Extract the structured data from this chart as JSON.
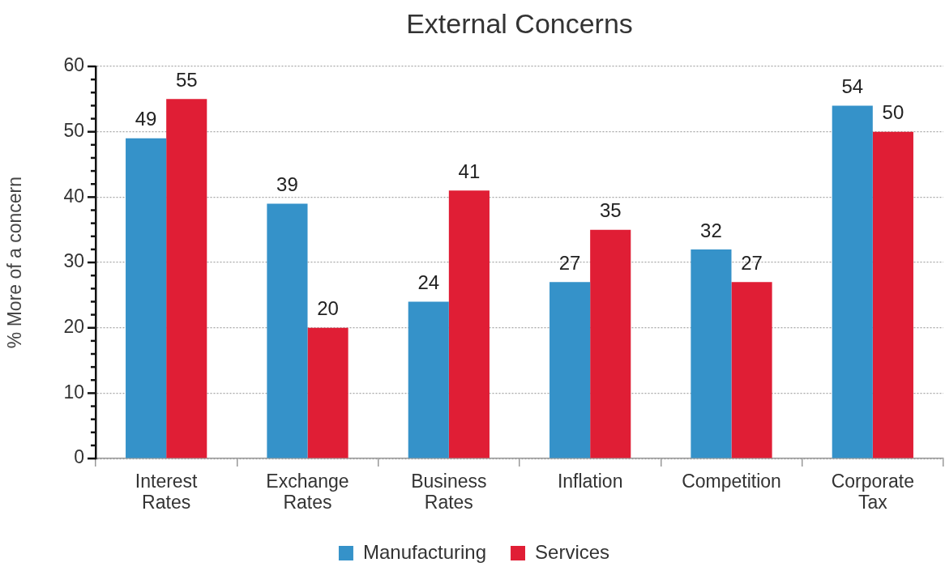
{
  "chart_data": {
    "type": "bar",
    "title": "External Concerns",
    "ylabel": "% More of a concern",
    "categories": [
      "Interest Rates",
      "Exchange Rates",
      "Business Rates",
      "Inflation",
      "Competition",
      "Corporate Tax"
    ],
    "series": [
      {
        "name": "Manufacturing",
        "color": "#3592c9",
        "values": [
          49,
          39,
          24,
          27,
          32,
          54
        ]
      },
      {
        "name": "Services",
        "color": "#e01e35",
        "values": [
          55,
          20,
          41,
          35,
          27,
          50
        ]
      }
    ],
    "ylim": [
      0,
      60
    ],
    "yticks": [
      0,
      {
        "value": 2,
        "label": null
      },
      {
        "value": 4,
        "label": null
      },
      {
        "value": 6,
        "label": null
      },
      {
        "value": 8,
        "label": null
      },
      10,
      {
        "value": 12,
        "label": null
      },
      {
        "value": 14,
        "label": null
      },
      {
        "value": 16,
        "label": null
      },
      {
        "value": 18,
        "label": null
      },
      20,
      {
        "value": 22,
        "label": null
      },
      {
        "value": 24,
        "label": null
      },
      {
        "value": 26,
        "label": null
      },
      {
        "value": 28,
        "label": null
      },
      30,
      {
        "value": 32,
        "label": null
      },
      {
        "value": 34,
        "label": null
      },
      {
        "value": 36,
        "label": null
      },
      {
        "value": 38,
        "label": null
      },
      40,
      {
        "value": 42,
        "label": null
      },
      {
        "value": 44,
        "label": null
      },
      {
        "value": 46,
        "label": null
      },
      {
        "value": 48,
        "label": null
      },
      50,
      {
        "value": 52,
        "label": null
      },
      {
        "value": 54,
        "label": null
      },
      {
        "value": 56,
        "label": null
      },
      {
        "value": 58,
        "label": null
      },
      60
    ],
    "grid": "y",
    "legend": "bottom",
    "data_labels": true
  }
}
